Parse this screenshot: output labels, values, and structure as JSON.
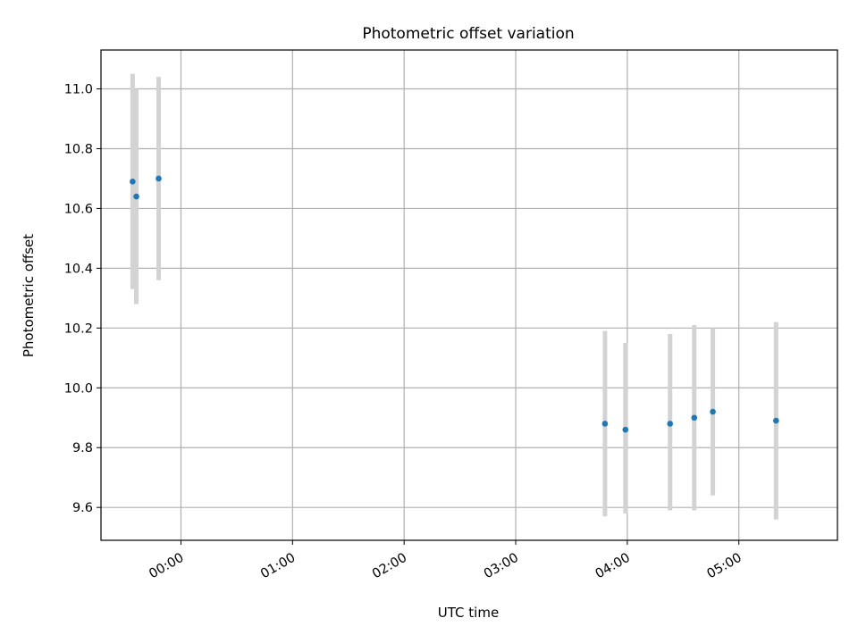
{
  "chart_data": {
    "type": "scatter",
    "title": "Photometric offset variation",
    "xlabel": "UTC time",
    "ylabel": "Photometric offset",
    "x_tick_labels": [
      "00:00",
      "01:00",
      "02:00",
      "03:00",
      "04:00",
      "05:00"
    ],
    "x_ticks": [
      "00:00",
      "01:00",
      "02:00",
      "03:00",
      "04:00",
      "05:00"
    ],
    "y_ticks": [
      9.6,
      9.8,
      10.0,
      10.2,
      10.4,
      10.6,
      10.8,
      11.0
    ],
    "y_tick_labels": [
      "9.6",
      "9.8",
      "10.0",
      "10.2",
      "10.4",
      "10.6",
      "10.8",
      "11.0"
    ],
    "xlim": [
      "23:17",
      "05:53"
    ],
    "ylim": [
      9.49,
      11.13
    ],
    "grid": true,
    "series": [
      {
        "marker_color": "#1f77b4",
        "errorbar_color": "#d3d3d3",
        "points": [
          {
            "time": "23:34",
            "y": 10.69,
            "low": 10.33,
            "high": 11.05
          },
          {
            "time": "23:36",
            "y": 10.64,
            "low": 10.28,
            "high": 11.0
          },
          {
            "time": "23:48",
            "y": 10.7,
            "low": 10.36,
            "high": 11.04
          },
          {
            "time": "03:48",
            "y": 9.88,
            "low": 9.57,
            "high": 10.19
          },
          {
            "time": "03:59",
            "y": 9.86,
            "low": 9.58,
            "high": 10.15
          },
          {
            "time": "04:23",
            "y": 9.88,
            "low": 9.59,
            "high": 10.18
          },
          {
            "time": "04:36",
            "y": 9.9,
            "low": 9.59,
            "high": 10.21
          },
          {
            "time": "04:46",
            "y": 9.92,
            "low": 9.64,
            "high": 10.2
          },
          {
            "time": "05:20",
            "y": 9.89,
            "low": 9.56,
            "high": 10.22
          }
        ]
      }
    ]
  }
}
